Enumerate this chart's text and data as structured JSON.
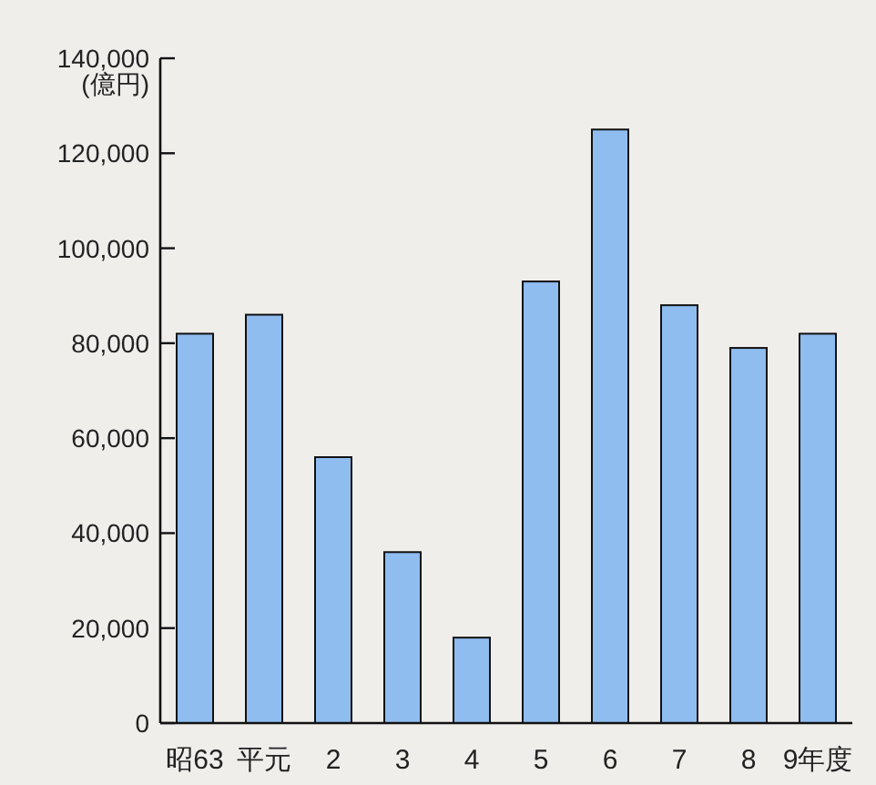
{
  "chart_data": {
    "type": "bar",
    "ylabel": "(億円)",
    "categories": [
      "昭63",
      "平元",
      "2",
      "3",
      "4",
      "5",
      "6",
      "7",
      "8",
      "9年度"
    ],
    "values": [
      82000,
      86000,
      56000,
      36000,
      18000,
      93000,
      125000,
      88000,
      79000,
      82000
    ],
    "color": "#8fbdf0",
    "ylim": [
      0,
      140000
    ],
    "yticks": [
      {
        "value": 0,
        "label": "0"
      },
      {
        "value": 20000,
        "label": "20,000"
      },
      {
        "value": 40000,
        "label": "40,000"
      },
      {
        "value": 60000,
        "label": "60,000"
      },
      {
        "value": 80000,
        "label": "80,000"
      },
      {
        "value": 100000,
        "label": "100,000"
      },
      {
        "value": 120000,
        "label": "120,000"
      },
      {
        "value": 140000,
        "label": "140,000"
      }
    ],
    "grid": false
  }
}
